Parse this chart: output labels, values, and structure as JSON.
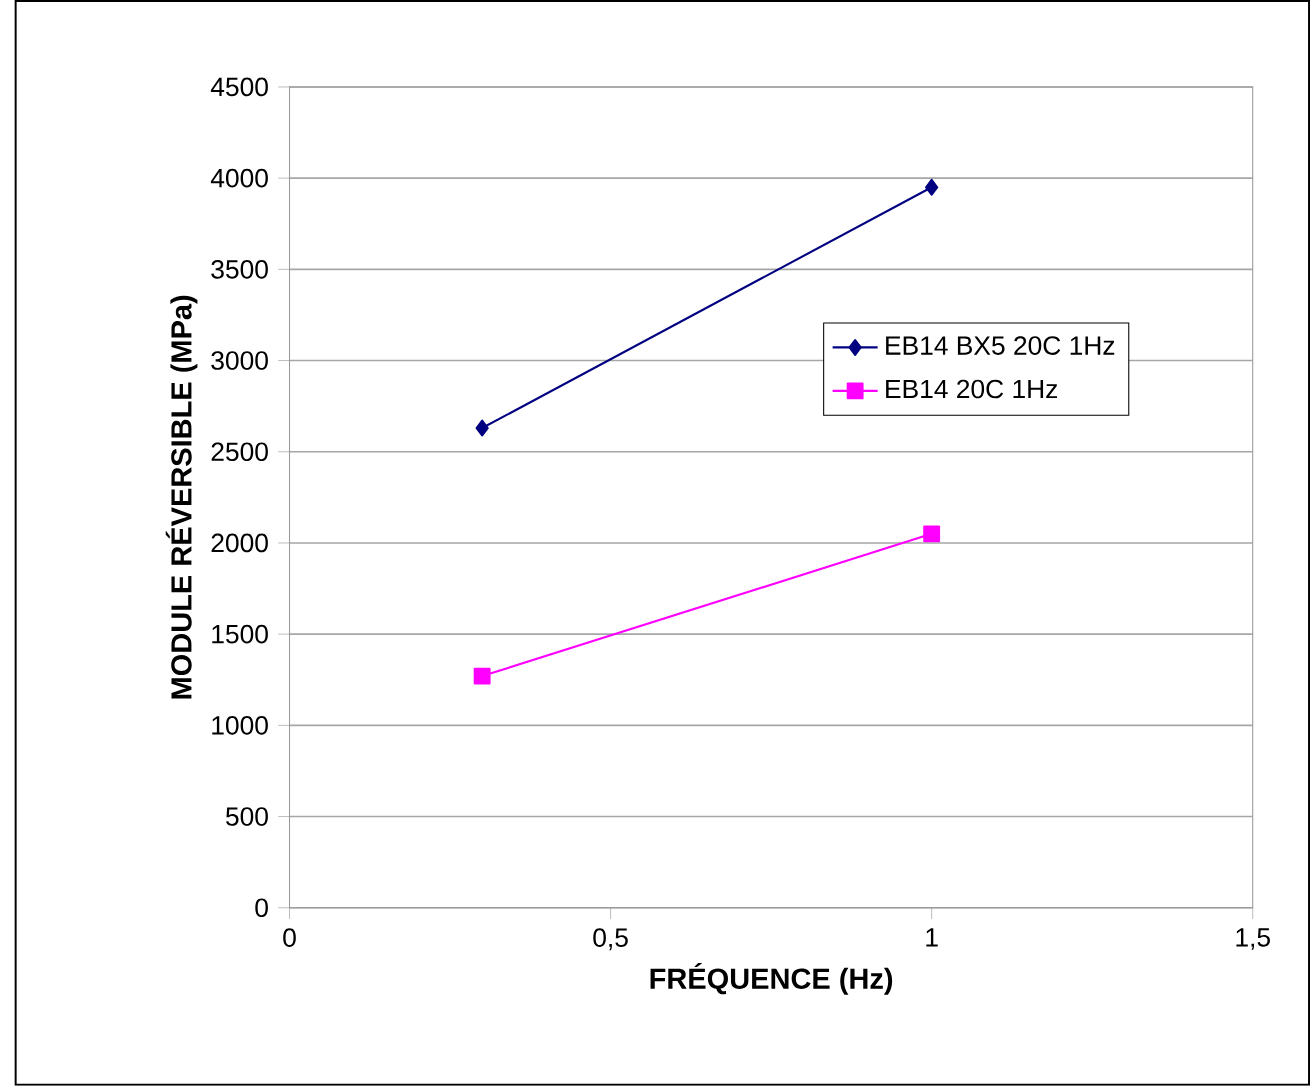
{
  "chart_data": {
    "type": "line",
    "xlabel": "FRÉQUENCE (Hz)",
    "ylabel": "MODULE RÉVERSIBLE (MPa)",
    "x": [
      0.3,
      1
    ],
    "series": [
      {
        "name": "EB14 BX5 20C 1Hz",
        "color": "#000080",
        "marker": "diamond",
        "values": [
          2630,
          3950
        ]
      },
      {
        "name": "EB14        20C 1Hz",
        "color": "#ff00ff",
        "marker": "square",
        "values": [
          1270,
          2050
        ]
      }
    ],
    "xlim": [
      0,
      1.5
    ],
    "xticks": [
      {
        "value": 0,
        "label": "0"
      },
      {
        "value": 0.5,
        "label": "0,5"
      },
      {
        "value": 1,
        "label": "1"
      },
      {
        "value": 1.5,
        "label": "1,5"
      }
    ],
    "ylim": [
      0,
      4500
    ],
    "yticks": [
      0,
      500,
      1000,
      1500,
      2000,
      2500,
      3000,
      3500,
      4000,
      4500
    ],
    "grid": "y",
    "legend": "right",
    "line_style": "solid"
  }
}
